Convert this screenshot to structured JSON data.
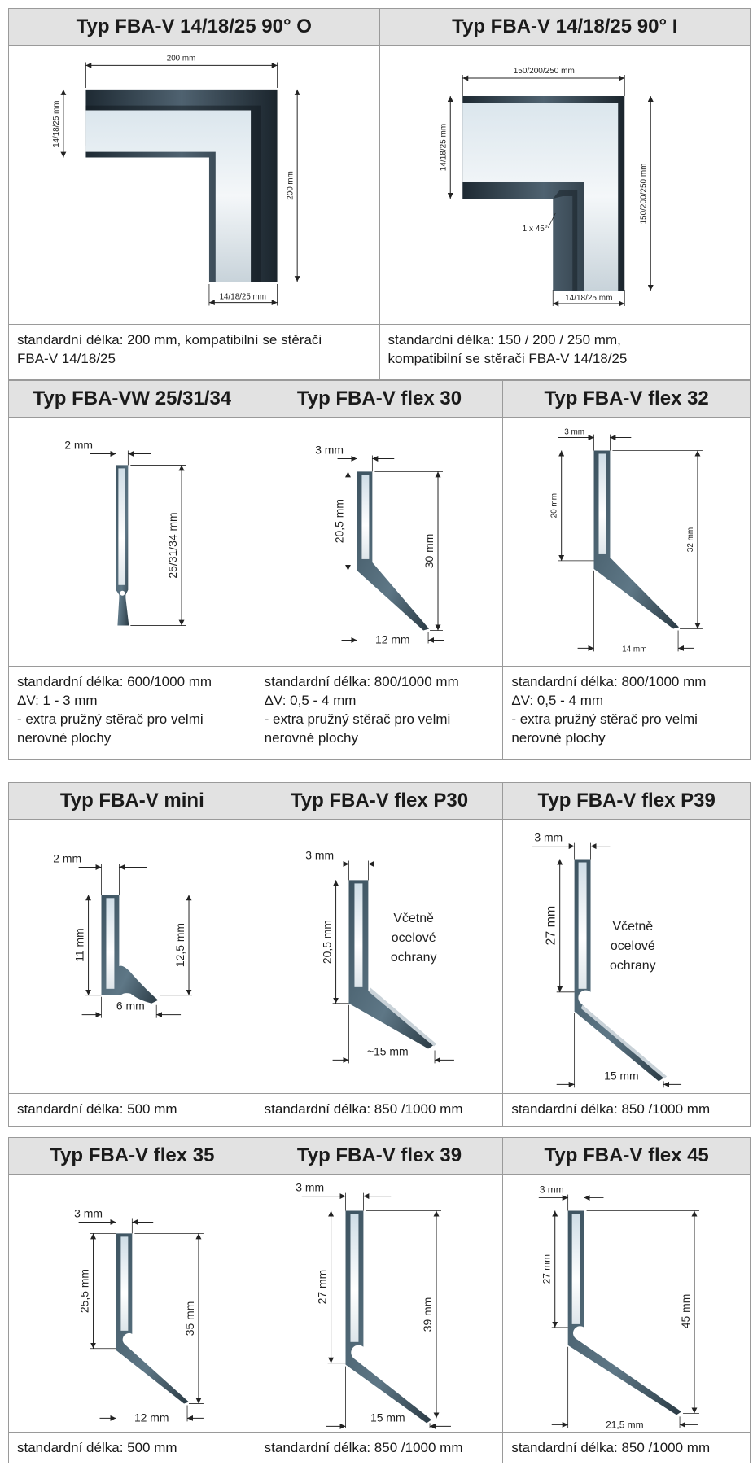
{
  "row1": [
    {
      "title": "Typ FBA-V 14/18/25 90° O",
      "dims": {
        "top": "200 mm",
        "left": "14/18/25 mm",
        "right": "200 mm",
        "bottom": "14/18/25 mm"
      },
      "desc": [
        "standardní délka: 200 mm, kompatibilní se stěrači",
        "FBA-V 14/18/25"
      ]
    },
    {
      "title": "Typ FBA-V 14/18/25 90° I",
      "dims": {
        "top": "150/200/250 mm",
        "left": "14/18/25 mm",
        "right": "150/200/250 mm",
        "bottom": "14/18/25 mm",
        "chamfer": "1 x 45°"
      },
      "desc": [
        "standardní délka: 150 / 200 / 250 mm,",
        "kompatibilní se stěrači FBA-V 14/18/25"
      ]
    }
  ],
  "row2": [
    {
      "title": "Typ FBA-VW 25/31/34",
      "dims": {
        "thickness": "2 mm",
        "height": "25/31/34 mm"
      },
      "desc": [
        "standardní délka: 600/1000 mm",
        "ΔV:  1 - 3 mm",
        "- extra pružný stěrač pro velmi",
        "nerovné plochy"
      ]
    },
    {
      "title": "Typ FBA-V flex 30",
      "dims": {
        "thickness": "3 mm",
        "inner": "20,5 mm",
        "height": "30 mm",
        "foot": "12 mm"
      },
      "desc": [
        "standardní délka: 800/1000 mm",
        "ΔV:  0,5 - 4 mm",
        "- extra pružný stěrač pro velmi",
        "nerovné plochy"
      ]
    },
    {
      "title": "Typ FBA-V flex 32",
      "dims": {
        "thickness": "3 mm",
        "inner": "20 mm",
        "height": "32 mm",
        "foot": "14 mm"
      },
      "desc": [
        "standardní délka: 800/1000 mm",
        "ΔV:  0,5 - 4 mm",
        "- extra pružný stěrač pro velmi",
        "nerovné plochy"
      ]
    }
  ],
  "row3": [
    {
      "title": "Typ FBA-V mini",
      "dims": {
        "thickness": "2 mm",
        "inner": "11 mm",
        "height": "12,5 mm",
        "foot": "6 mm"
      },
      "desc": [
        "standardní délka: 500 mm"
      ]
    },
    {
      "title": "Typ FBA-V flex P30",
      "dims": {
        "thickness": "3 mm",
        "inner": "20,5 mm",
        "foot": "~15 mm"
      },
      "note": [
        "Včetně",
        "ocelové",
        "ochrany"
      ],
      "desc": [
        "standardní délka: 850 /1000 mm"
      ]
    },
    {
      "title": "Typ FBA-V flex P39",
      "dims": {
        "thickness": "3 mm",
        "inner": "27 mm",
        "foot": "15 mm"
      },
      "note": [
        "Včetně",
        "ocelové",
        "ochrany"
      ],
      "desc": [
        "standardní délka: 850 /1000 mm"
      ]
    }
  ],
  "row4": [
    {
      "title": "Typ FBA-V flex 35",
      "dims": {
        "thickness": "3 mm",
        "inner": "25,5 mm",
        "height": "35 mm",
        "foot": "12 mm"
      },
      "desc": [
        "standardní délka: 500 mm"
      ]
    },
    {
      "title": "Typ FBA-V flex 39",
      "dims": {
        "thickness": "3 mm",
        "inner": "27 mm",
        "height": "39 mm",
        "foot": "15 mm"
      },
      "desc": [
        "standardní délka: 850 /1000 mm"
      ]
    },
    {
      "title": "Typ FBA-V flex 45",
      "dims": {
        "thickness": "3 mm",
        "inner": "27 mm",
        "height": "45 mm",
        "foot": "21,5 mm"
      },
      "desc": [
        "standardní délka: 850 /1000 mm"
      ]
    }
  ]
}
